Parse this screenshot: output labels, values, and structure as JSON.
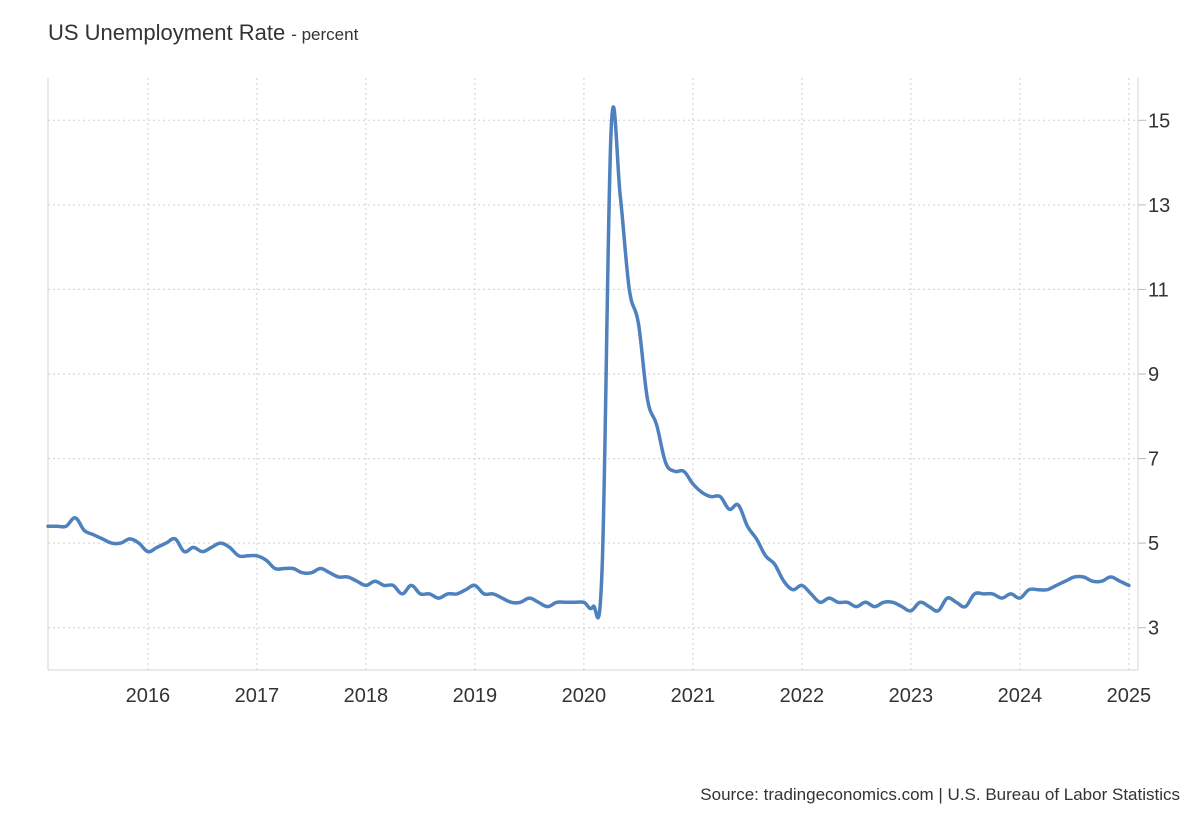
{
  "chart_data": {
    "type": "line",
    "title": "US Unemployment Rate",
    "subtitle": "- percent",
    "source": "Source: tradingeconomics.com | U.S. Bureau of Labor Statistics",
    "xlabel": "",
    "ylabel": "",
    "x_tick_labels": [
      "2016",
      "2017",
      "2018",
      "2019",
      "2020",
      "2021",
      "2022",
      "2023",
      "2024",
      "2025"
    ],
    "y_tick_labels": [
      "3",
      "5",
      "7",
      "9",
      "11",
      "13",
      "15"
    ],
    "y_ticks": [
      3,
      5,
      7,
      9,
      11,
      13,
      15
    ],
    "xlim": [
      "2015-02",
      "2025-02"
    ],
    "ylim": [
      2,
      16
    ],
    "grid": true,
    "y_axis_side": "right",
    "line_color": "#4e81bd",
    "series": [
      {
        "x": [
          "2015-02",
          "2015-03",
          "2015-04",
          "2015-05",
          "2015-06",
          "2015-07",
          "2015-08",
          "2015-09",
          "2015-10",
          "2015-11",
          "2015-12",
          "2016-01",
          "2016-02",
          "2016-03",
          "2016-04",
          "2016-05",
          "2016-06",
          "2016-07",
          "2016-08",
          "2016-09",
          "2016-10",
          "2016-11",
          "2016-12",
          "2017-01",
          "2017-02",
          "2017-03",
          "2017-04",
          "2017-05",
          "2017-06",
          "2017-07",
          "2017-08",
          "2017-09",
          "2017-10",
          "2017-11",
          "2017-12",
          "2018-01",
          "2018-02",
          "2018-03",
          "2018-04",
          "2018-05",
          "2018-06",
          "2018-07",
          "2018-08",
          "2018-09",
          "2018-10",
          "2018-11",
          "2018-12",
          "2019-01",
          "2019-02",
          "2019-03",
          "2019-04",
          "2019-05",
          "2019-06",
          "2019-07",
          "2019-08",
          "2019-09",
          "2019-10",
          "2019-11",
          "2019-12",
          "2020-01",
          "2020-02",
          "2020-03",
          "2020-04",
          "2020-05",
          "2020-06",
          "2020-07",
          "2020-08",
          "2020-09",
          "2020-10",
          "2020-11",
          "2020-12",
          "2021-01",
          "2021-02",
          "2021-03",
          "2021-04",
          "2021-05",
          "2021-06",
          "2021-07",
          "2021-08",
          "2021-09",
          "2021-10",
          "2021-11",
          "2021-12",
          "2022-01",
          "2022-02",
          "2022-03",
          "2022-04",
          "2022-05",
          "2022-06",
          "2022-07",
          "2022-08",
          "2022-09",
          "2022-10",
          "2022-11",
          "2022-12",
          "2023-01",
          "2023-02",
          "2023-03",
          "2023-04",
          "2023-05",
          "2023-06",
          "2023-07",
          "2023-08",
          "2023-09",
          "2023-10",
          "2023-11",
          "2023-12",
          "2024-01",
          "2024-02",
          "2024-03",
          "2024-04",
          "2024-05",
          "2024-06",
          "2024-07",
          "2024-08",
          "2024-09",
          "2024-10",
          "2024-11",
          "2024-12",
          "2025-01"
        ],
        "values": [
          5.4,
          5.4,
          5.4,
          5.6,
          5.3,
          5.2,
          5.1,
          5.0,
          5.0,
          5.1,
          5.0,
          4.8,
          4.9,
          5.0,
          5.1,
          4.8,
          4.9,
          4.8,
          4.9,
          5.0,
          4.9,
          4.7,
          4.7,
          4.7,
          4.6,
          4.4,
          4.4,
          4.4,
          4.3,
          4.3,
          4.4,
          4.3,
          4.2,
          4.2,
          4.1,
          4.0,
          4.1,
          4.0,
          4.0,
          3.8,
          4.0,
          3.8,
          3.8,
          3.7,
          3.8,
          3.8,
          3.9,
          4.0,
          3.8,
          3.8,
          3.7,
          3.6,
          3.6,
          3.7,
          3.6,
          3.5,
          3.6,
          3.6,
          3.6,
          3.6,
          3.5,
          4.4,
          14.8,
          13.2,
          11.0,
          10.2,
          8.4,
          7.8,
          6.9,
          6.7,
          6.7,
          6.4,
          6.2,
          6.1,
          6.1,
          5.8,
          5.9,
          5.4,
          5.1,
          4.7,
          4.5,
          4.1,
          3.9,
          4.0,
          3.8,
          3.6,
          3.7,
          3.6,
          3.6,
          3.5,
          3.6,
          3.5,
          3.6,
          3.6,
          3.5,
          3.4,
          3.6,
          3.5,
          3.4,
          3.7,
          3.6,
          3.5,
          3.8,
          3.8,
          3.8,
          3.7,
          3.8,
          3.7,
          3.9,
          3.9,
          3.9,
          4.0,
          4.1,
          4.2,
          4.2,
          4.1,
          4.1,
          4.2,
          4.1,
          4.0
        ]
      }
    ]
  }
}
